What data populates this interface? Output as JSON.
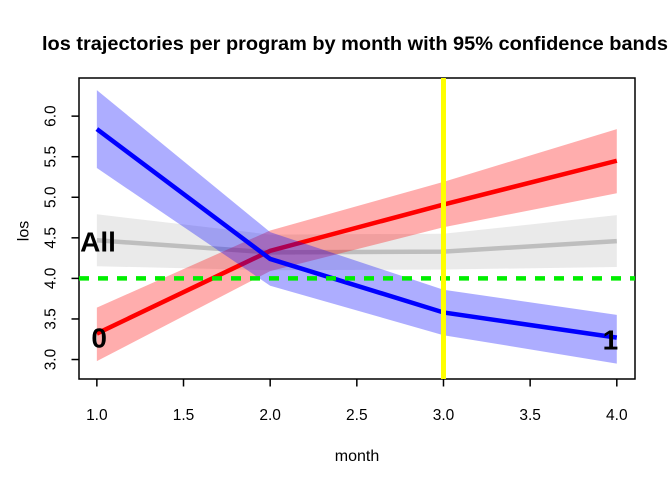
{
  "title": "los trajectories per program by month with 95% confidence bands",
  "chart_data": {
    "type": "line",
    "title": "los trajectories per program by month with 95% confidence bands",
    "xlabel": "month",
    "ylabel": "los",
    "x": [
      1,
      2,
      3,
      4
    ],
    "x_ticks": [
      1.0,
      1.5,
      2.0,
      2.5,
      3.0,
      3.5,
      4.0
    ],
    "y_ticks": [
      3.0,
      3.5,
      4.0,
      4.5,
      5.0,
      5.5,
      6.0
    ],
    "xlim": [
      0.897,
      4.105
    ],
    "ylim": [
      2.76,
      6.47
    ],
    "grid": false,
    "legend": "inline-labels",
    "band_opacity": 0.32,
    "line_width": 4.5,
    "series": [
      {
        "name": "All",
        "label": "All",
        "color": "#BEBEBE",
        "values": [
          4.47,
          4.32,
          4.33,
          4.46
        ],
        "lower": [
          4.15,
          4.1,
          4.11,
          4.14
        ],
        "upper": [
          4.79,
          4.54,
          4.55,
          4.78
        ],
        "label_x": 1.007,
        "label_y": 4.45
      },
      {
        "name": "0",
        "label": "0",
        "color": "#FF0000",
        "values": [
          3.32,
          4.34,
          4.91,
          5.45
        ],
        "lower": [
          2.98,
          4.09,
          4.63,
          5.05
        ],
        "upper": [
          3.64,
          4.59,
          5.19,
          5.84
        ],
        "label_x": 1.013,
        "label_y": 3.27
      },
      {
        "name": "1",
        "label": "1",
        "color": "#0000FF",
        "values": [
          5.84,
          4.24,
          3.58,
          3.27
        ],
        "lower": [
          5.36,
          3.91,
          3.3,
          2.95
        ],
        "upper": [
          6.32,
          4.57,
          3.86,
          3.55
        ],
        "label_x": 3.963,
        "label_y": 3.245
      }
    ],
    "reference_lines": [
      {
        "orientation": "horizontal",
        "value": 4.0,
        "color": "#00EE00",
        "style": "dashed",
        "width": 4.5
      },
      {
        "orientation": "vertical",
        "value": 3.0,
        "color": "#FFFF00",
        "style": "solid",
        "width": 5
      }
    ]
  }
}
